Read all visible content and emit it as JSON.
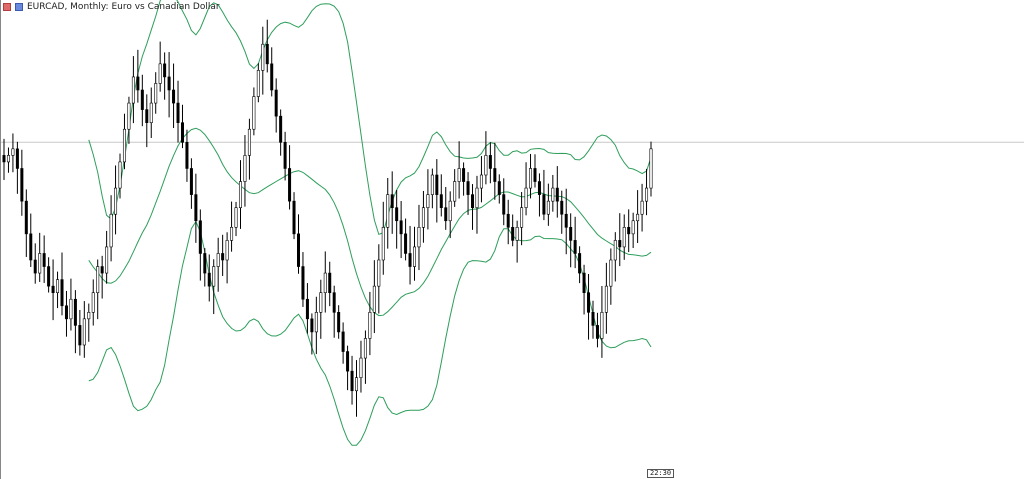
{
  "window": {
    "symbol_title": "EURCAD, Monthly:  Euro vs Canadian Dollar"
  },
  "axis": {
    "time_label": "22:30"
  },
  "colors": {
    "background": "#ffffff",
    "candle": "#000000",
    "bands": "#2e9e5b",
    "price_line": "#c8c8c8"
  },
  "icons": [
    "flag-red-icon",
    "flag-blue-icon"
  ],
  "chart_data": {
    "type": "candlestick",
    "indicator": "bollinger-bands",
    "candles_close": [
      1.36,
      1.37,
      1.38,
      1.35,
      1.3,
      1.25,
      1.21,
      1.19,
      1.22,
      1.2,
      1.17,
      1.16,
      1.18,
      1.14,
      1.12,
      1.15,
      1.11,
      1.08,
      1.12,
      1.13,
      1.16,
      1.2,
      1.19,
      1.23,
      1.28,
      1.32,
      1.36,
      1.41,
      1.45,
      1.49,
      1.47,
      1.44,
      1.42,
      1.45,
      1.48,
      1.51,
      1.49,
      1.47,
      1.45,
      1.42,
      1.39,
      1.35,
      1.31,
      1.27,
      1.22,
      1.19,
      1.17,
      1.2,
      1.22,
      1.21,
      1.24,
      1.26,
      1.29,
      1.33,
      1.37,
      1.41,
      1.46,
      1.5,
      1.54,
      1.51,
      1.47,
      1.43,
      1.39,
      1.35,
      1.3,
      1.25,
      1.2,
      1.15,
      1.12,
      1.1,
      1.13,
      1.16,
      1.19,
      1.16,
      1.13,
      1.1,
      1.07,
      1.04,
      1.01,
      1.03,
      1.06,
      1.09,
      1.13,
      1.17,
      1.21,
      1.26,
      1.31,
      1.29,
      1.27,
      1.25,
      1.22,
      1.2,
      1.23,
      1.26,
      1.29,
      1.31,
      1.34,
      1.31,
      1.29,
      1.27,
      1.3,
      1.33,
      1.35,
      1.33,
      1.31,
      1.29,
      1.32,
      1.34,
      1.37,
      1.35,
      1.33,
      1.31,
      1.28,
      1.26,
      1.24,
      1.26,
      1.29,
      1.32,
      1.35,
      1.33,
      1.31,
      1.28,
      1.3,
      1.32,
      1.3,
      1.28,
      1.26,
      1.24,
      1.22,
      1.19,
      1.16,
      1.13,
      1.11,
      1.09,
      1.13,
      1.17,
      1.21,
      1.24,
      1.23,
      1.26,
      1.25,
      1.27,
      1.28,
      1.3,
      1.32,
      1.38
    ],
    "current_price_line": 1.39,
    "grid": false
  }
}
